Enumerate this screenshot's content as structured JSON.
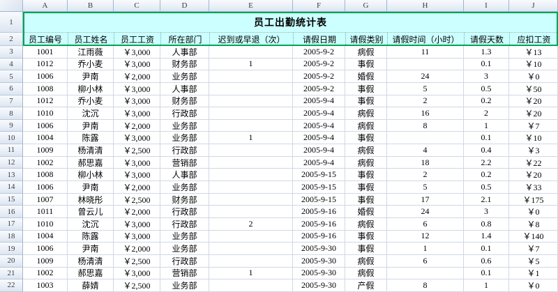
{
  "sheet": {
    "title": "员工出勤统计表",
    "column_letters": [
      "A",
      "B",
      "C",
      "D",
      "E",
      "F",
      "G",
      "H",
      "I",
      "J"
    ],
    "row_numbers": [
      "1",
      "2",
      "3",
      "4",
      "5",
      "6",
      "7",
      "8",
      "9",
      "10",
      "11",
      "12",
      "13",
      "14",
      "15",
      "16",
      "17",
      "18",
      "19",
      "20",
      "21",
      "22"
    ],
    "headers": [
      "员工编号",
      "员工姓名",
      "员工工资",
      "所在部门",
      "迟到或早退（次）",
      "请假日期",
      "请假类别",
      "请假时间（小时）",
      "请假天数",
      "应扣工资"
    ],
    "rows": [
      [
        "1001",
        "江雨薇",
        "￥3,000",
        "人事部",
        "",
        "2005-9-2",
        "病假",
        "11",
        "1.3",
        "￥13"
      ],
      [
        "1012",
        "乔小麦",
        "￥3,000",
        "财务部",
        "1",
        "2005-9-2",
        "事假",
        "",
        "0.1",
        "￥10"
      ],
      [
        "1006",
        "尹南",
        "￥2,000",
        "业务部",
        "",
        "2005-9-2",
        "婚假",
        "24",
        "3",
        "￥0"
      ],
      [
        "1008",
        "柳小林",
        "￥3,000",
        "人事部",
        "",
        "2005-9-2",
        "事假",
        "5",
        "0.5",
        "￥50"
      ],
      [
        "1012",
        "乔小麦",
        "￥3,000",
        "财务部",
        "",
        "2005-9-4",
        "事假",
        "2",
        "0.2",
        "￥20"
      ],
      [
        "1010",
        "沈沉",
        "￥3,000",
        "行政部",
        "",
        "2005-9-4",
        "病假",
        "16",
        "2",
        "￥20"
      ],
      [
        "1006",
        "尹南",
        "￥2,000",
        "业务部",
        "",
        "2005-9-4",
        "病假",
        "8",
        "1",
        "￥7"
      ],
      [
        "1004",
        "陈露",
        "￥3,000",
        "业务部",
        "1",
        "2005-9-4",
        "事假",
        "",
        "0.1",
        "￥10"
      ],
      [
        "1009",
        "杨清清",
        "￥2,500",
        "行政部",
        "",
        "2005-9-4",
        "病假",
        "4",
        "0.4",
        "￥3"
      ],
      [
        "1002",
        "郝思嘉",
        "￥3,000",
        "营销部",
        "",
        "2005-9-4",
        "病假",
        "18",
        "2.2",
        "￥22"
      ],
      [
        "1008",
        "柳小林",
        "￥3,000",
        "人事部",
        "",
        "2005-9-15",
        "事假",
        "2",
        "0.2",
        "￥20"
      ],
      [
        "1006",
        "尹南",
        "￥2,000",
        "业务部",
        "",
        "2005-9-15",
        "事假",
        "5",
        "0.5",
        "￥33"
      ],
      [
        "1007",
        "林晓彤",
        "￥2,500",
        "财务部",
        "",
        "2005-9-15",
        "事假",
        "17",
        "2.1",
        "￥175"
      ],
      [
        "1011",
        "曾云儿",
        "￥2,000",
        "行政部",
        "",
        "2005-9-16",
        "婚假",
        "24",
        "3",
        "￥0"
      ],
      [
        "1010",
        "沈沉",
        "￥3,000",
        "行政部",
        "2",
        "2005-9-16",
        "病假",
        "6",
        "0.8",
        "￥8"
      ],
      [
        "1004",
        "陈露",
        "￥3,000",
        "业务部",
        "",
        "2005-9-16",
        "事假",
        "12",
        "1.4",
        "￥140"
      ],
      [
        "1006",
        "尹南",
        "￥2,000",
        "业务部",
        "",
        "2005-9-30",
        "事假",
        "1",
        "0.1",
        "￥7"
      ],
      [
        "1009",
        "杨清清",
        "￥2,500",
        "行政部",
        "",
        "2005-9-30",
        "病假",
        "6",
        "0.6",
        "￥5"
      ],
      [
        "1002",
        "郝思嘉",
        "￥3,000",
        "营销部",
        "1",
        "2005-9-30",
        "病假",
        "",
        "0.1",
        "￥1"
      ],
      [
        "1003",
        "薛婧",
        "￥2,500",
        "业务部",
        "",
        "2005-9-30",
        "产假",
        "8",
        "1",
        "￥0"
      ]
    ],
    "colors": {
      "selection_fill": "#CCFFFF",
      "selection_border_green": "#00A550",
      "gridline": "#D0D7E5",
      "chrome_border": "#9EB6CE"
    }
  }
}
